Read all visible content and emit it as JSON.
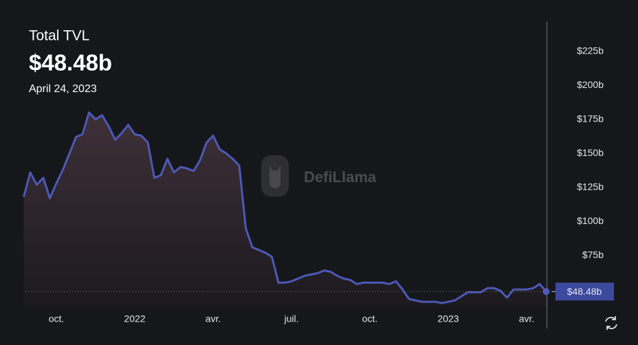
{
  "chart_data": {
    "type": "area",
    "title": "Total TVL",
    "current_value": {
      "value": 48.48,
      "label": "$48.48b"
    },
    "current_date": "April 24, 2023",
    "watermark": "DefiLlama",
    "color": "#4c59b8",
    "categories": [
      null,
      null,
      null,
      null,
      null,
      "oct.",
      null,
      null,
      null,
      null,
      null,
      null,
      null,
      null,
      null,
      null,
      null,
      "2022",
      null,
      null,
      null,
      null,
      null,
      null,
      null,
      null,
      null,
      null,
      null,
      "avr.",
      null,
      null,
      null,
      null,
      null,
      null,
      null,
      null,
      null,
      null,
      null,
      "juil.",
      null,
      null,
      null,
      null,
      null,
      null,
      null,
      null,
      null,
      null,
      null,
      "oct.",
      null,
      null,
      null,
      null,
      null,
      null,
      null,
      null,
      null,
      null,
      null,
      "2023",
      null,
      null,
      null,
      null,
      null,
      null,
      null,
      null,
      null,
      null,
      null,
      "avr.",
      null,
      null,
      null
    ],
    "values": [
      118,
      136,
      127,
      132,
      117,
      128,
      138,
      150,
      162,
      164,
      180,
      175,
      178,
      170,
      160,
      165,
      171,
      164,
      163,
      158,
      132,
      134,
      146,
      136,
      140,
      139,
      137,
      145,
      158,
      163,
      153,
      150,
      146,
      141,
      95,
      81,
      79,
      77,
      74,
      55,
      55,
      56,
      58,
      60,
      61,
      62,
      64,
      63,
      60,
      58,
      57,
      54,
      55,
      55,
      55,
      55,
      54,
      56,
      50,
      43,
      42,
      41,
      41,
      41,
      40,
      41,
      42,
      45,
      48,
      48,
      48,
      51,
      51,
      49,
      44,
      50,
      50,
      50,
      51,
      54,
      48.48
    ],
    "ylim": [
      38,
      245
    ],
    "yticks": [
      {
        "value": 75,
        "label": "$75b"
      },
      {
        "value": 100,
        "label": "$100b"
      },
      {
        "value": 125,
        "label": "$125b"
      },
      {
        "value": 150,
        "label": "$150b"
      },
      {
        "value": 175,
        "label": "$175b"
      },
      {
        "value": 200,
        "label": "$200b"
      },
      {
        "value": 225,
        "label": "$225b"
      }
    ]
  }
}
